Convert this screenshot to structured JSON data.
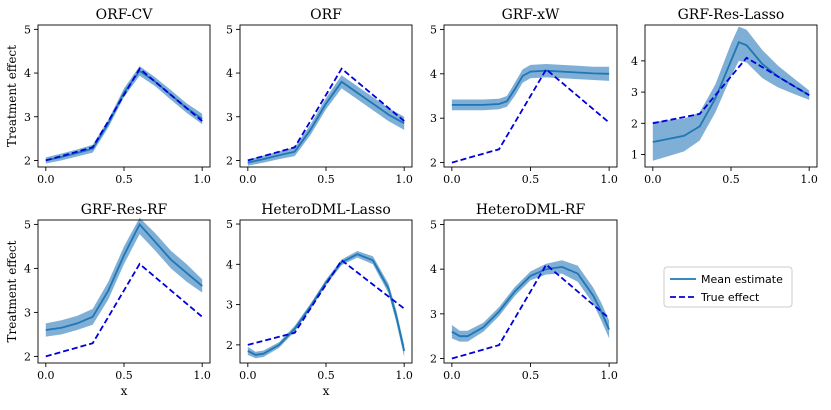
{
  "colors": {
    "mean": "#1f77b4",
    "band": "#7fafd6",
    "true": "#0000dd"
  },
  "legend": {
    "items": [
      "Mean estimate",
      "True effect"
    ]
  },
  "chart_data": [
    {
      "type": "line",
      "title": "ORF-CV",
      "xlabel": "",
      "ylabel": "Treatment effect",
      "xlim": [
        0,
        1
      ],
      "ylim": [
        1.85,
        5.1
      ],
      "yticks": [
        2,
        3,
        4,
        5
      ],
      "xticks": [
        0.0,
        0.5,
        1.0
      ],
      "x": [
        0,
        0.1,
        0.2,
        0.3,
        0.4,
        0.5,
        0.6,
        0.7,
        0.8,
        0.9,
        1.0
      ],
      "series": [
        {
          "name": "Mean estimate",
          "values": [
            2.0,
            2.08,
            2.17,
            2.27,
            2.85,
            3.55,
            4.05,
            3.8,
            3.5,
            3.2,
            2.95
          ],
          "lower": [
            1.93,
            2.0,
            2.09,
            2.18,
            2.76,
            3.45,
            3.94,
            3.7,
            3.39,
            3.09,
            2.83
          ],
          "upper": [
            2.07,
            2.16,
            2.25,
            2.36,
            2.94,
            3.65,
            4.16,
            3.9,
            3.61,
            3.31,
            3.07
          ]
        },
        {
          "name": "True effect",
          "values": [
            2.0,
            2.1,
            2.2,
            2.3,
            2.9,
            3.5,
            4.1,
            3.8,
            3.5,
            3.2,
            2.9
          ]
        }
      ]
    },
    {
      "type": "line",
      "title": "ORF",
      "xlabel": "",
      "ylabel": "",
      "xlim": [
        0,
        1
      ],
      "ylim": [
        1.85,
        5.1
      ],
      "yticks": [
        2,
        3,
        4,
        5
      ],
      "xticks": [
        0.0,
        0.5,
        1.0
      ],
      "x": [
        0,
        0.1,
        0.2,
        0.3,
        0.4,
        0.5,
        0.6,
        0.7,
        0.8,
        0.9,
        1.0
      ],
      "series": [
        {
          "name": "Mean estimate",
          "values": [
            1.95,
            2.03,
            2.12,
            2.2,
            2.7,
            3.3,
            3.8,
            3.55,
            3.3,
            3.05,
            2.85
          ],
          "lower": [
            1.88,
            1.95,
            2.03,
            2.1,
            2.58,
            3.17,
            3.65,
            3.4,
            3.15,
            2.9,
            2.7
          ],
          "upper": [
            2.02,
            2.11,
            2.21,
            2.3,
            2.82,
            3.43,
            3.95,
            3.7,
            3.45,
            3.2,
            3.0
          ]
        },
        {
          "name": "True effect",
          "values": [
            2.0,
            2.1,
            2.2,
            2.3,
            2.9,
            3.5,
            4.1,
            3.8,
            3.5,
            3.2,
            2.9
          ]
        }
      ]
    },
    {
      "type": "line",
      "title": "GRF-xW",
      "xlabel": "",
      "ylabel": "",
      "xlim": [
        0,
        1
      ],
      "ylim": [
        1.9,
        5.1
      ],
      "yticks": [
        2,
        3,
        4,
        5
      ],
      "xticks": [
        0.0,
        0.5,
        1.0
      ],
      "x": [
        0,
        0.1,
        0.2,
        0.3,
        0.35,
        0.4,
        0.45,
        0.5,
        0.6,
        0.7,
        0.8,
        0.9,
        1.0
      ],
      "series": [
        {
          "name": "Mean estimate",
          "values": [
            3.3,
            3.3,
            3.3,
            3.32,
            3.38,
            3.65,
            3.95,
            4.05,
            4.07,
            4.05,
            4.03,
            4.01,
            4.0
          ],
          "lower": [
            3.18,
            3.18,
            3.18,
            3.2,
            3.26,
            3.5,
            3.8,
            3.9,
            3.92,
            3.9,
            3.88,
            3.86,
            3.84
          ],
          "upper": [
            3.42,
            3.42,
            3.42,
            3.44,
            3.5,
            3.8,
            4.1,
            4.2,
            4.22,
            4.2,
            4.18,
            4.16,
            4.16
          ]
        },
        {
          "name": "True effect",
          "values": [
            2.0,
            2.1,
            2.2,
            2.3,
            2.6,
            2.9,
            3.2,
            3.5,
            4.1,
            3.8,
            3.5,
            3.2,
            2.9
          ]
        }
      ]
    },
    {
      "type": "line",
      "title": "GRF-Res-Lasso",
      "xlabel": "",
      "ylabel": "",
      "xlim": [
        0,
        1
      ],
      "ylim": [
        0.6,
        5.15
      ],
      "yticks": [
        1,
        2,
        3,
        4
      ],
      "xticks": [
        0.0,
        0.5,
        1.0
      ],
      "x": [
        0,
        0.1,
        0.2,
        0.3,
        0.4,
        0.5,
        0.55,
        0.6,
        0.7,
        0.8,
        0.9,
        1.0
      ],
      "series": [
        {
          "name": "Mean estimate",
          "values": [
            1.4,
            1.5,
            1.6,
            1.9,
            2.8,
            4.0,
            4.6,
            4.5,
            3.9,
            3.5,
            3.2,
            2.9
          ],
          "lower": [
            0.8,
            0.95,
            1.1,
            1.45,
            2.35,
            3.5,
            4.0,
            3.95,
            3.45,
            3.15,
            2.95,
            2.75
          ],
          "upper": [
            2.05,
            2.1,
            2.15,
            2.35,
            3.25,
            4.55,
            5.1,
            5.0,
            4.35,
            3.85,
            3.45,
            3.05
          ]
        },
        {
          "name": "True effect",
          "values": [
            2.0,
            2.1,
            2.2,
            2.3,
            2.9,
            3.5,
            3.8,
            4.1,
            3.8,
            3.5,
            3.2,
            2.9
          ]
        }
      ]
    },
    {
      "type": "line",
      "title": "GRF-Res-RF",
      "xlabel": "x",
      "ylabel": "Treatment effect",
      "xlim": [
        0,
        1
      ],
      "ylim": [
        1.85,
        5.1
      ],
      "yticks": [
        2,
        3,
        4,
        5
      ],
      "xticks": [
        0.0,
        0.5,
        1.0
      ],
      "x": [
        0,
        0.1,
        0.2,
        0.3,
        0.4,
        0.5,
        0.6,
        0.7,
        0.8,
        0.9,
        1.0
      ],
      "series": [
        {
          "name": "Mean estimate",
          "values": [
            2.6,
            2.65,
            2.75,
            2.9,
            3.5,
            4.3,
            5.0,
            4.6,
            4.2,
            3.9,
            3.6
          ],
          "lower": [
            2.45,
            2.5,
            2.6,
            2.72,
            3.3,
            4.1,
            4.78,
            4.4,
            4.0,
            3.7,
            3.45
          ],
          "upper": [
            2.75,
            2.82,
            2.92,
            3.08,
            3.7,
            4.5,
            5.15,
            4.8,
            4.4,
            4.1,
            3.75
          ]
        },
        {
          "name": "True effect",
          "values": [
            2.0,
            2.1,
            2.2,
            2.3,
            2.9,
            3.5,
            4.1,
            3.8,
            3.5,
            3.2,
            2.9
          ]
        }
      ]
    },
    {
      "type": "line",
      "title": "HeteroDML-Lasso",
      "xlabel": "x",
      "ylabel": "",
      "xlim": [
        0,
        1
      ],
      "ylim": [
        1.55,
        5.1
      ],
      "yticks": [
        2,
        3,
        4,
        5
      ],
      "xticks": [
        0.0,
        0.5,
        1.0
      ],
      "x": [
        0,
        0.05,
        0.1,
        0.2,
        0.3,
        0.4,
        0.5,
        0.6,
        0.7,
        0.8,
        0.9,
        0.95,
        1.0
      ],
      "series": [
        {
          "name": "Mean estimate",
          "values": [
            1.85,
            1.75,
            1.78,
            2.0,
            2.4,
            2.95,
            3.55,
            4.05,
            4.25,
            4.1,
            3.4,
            2.7,
            1.85
          ],
          "lower": [
            1.75,
            1.67,
            1.7,
            1.93,
            2.33,
            2.88,
            3.48,
            3.98,
            4.17,
            4.0,
            3.28,
            2.55,
            1.7
          ],
          "upper": [
            1.95,
            1.83,
            1.86,
            2.07,
            2.47,
            3.02,
            3.62,
            4.12,
            4.33,
            4.2,
            3.52,
            2.85,
            2.0
          ]
        },
        {
          "name": "True effect",
          "values": [
            2.0,
            2.05,
            2.1,
            2.2,
            2.3,
            2.9,
            3.5,
            4.1,
            3.8,
            3.5,
            3.2,
            3.05,
            2.9
          ]
        }
      ]
    },
    {
      "type": "line",
      "title": "HeteroDML-RF",
      "xlabel": "",
      "ylabel": "",
      "xlim": [
        0,
        1
      ],
      "ylim": [
        1.9,
        5.1
      ],
      "yticks": [
        2,
        3,
        4,
        5
      ],
      "xticks": [
        0.0,
        0.5,
        1.0
      ],
      "x": [
        0,
        0.05,
        0.1,
        0.2,
        0.3,
        0.4,
        0.5,
        0.6,
        0.7,
        0.8,
        0.9,
        0.95,
        1.0
      ],
      "series": [
        {
          "name": "Mean estimate",
          "values": [
            2.6,
            2.5,
            2.5,
            2.7,
            3.05,
            3.5,
            3.85,
            4.0,
            4.05,
            3.9,
            3.4,
            3.05,
            2.65
          ],
          "lower": [
            2.45,
            2.38,
            2.38,
            2.6,
            2.95,
            3.4,
            3.75,
            3.88,
            3.9,
            3.72,
            3.22,
            2.85,
            2.45
          ],
          "upper": [
            2.75,
            2.62,
            2.62,
            2.8,
            3.15,
            3.6,
            3.95,
            4.12,
            4.2,
            4.08,
            3.58,
            3.25,
            2.85
          ]
        },
        {
          "name": "True effect",
          "values": [
            2.0,
            2.05,
            2.1,
            2.2,
            2.3,
            2.9,
            3.5,
            4.1,
            3.8,
            3.5,
            3.2,
            3.05,
            2.9
          ]
        }
      ]
    }
  ]
}
